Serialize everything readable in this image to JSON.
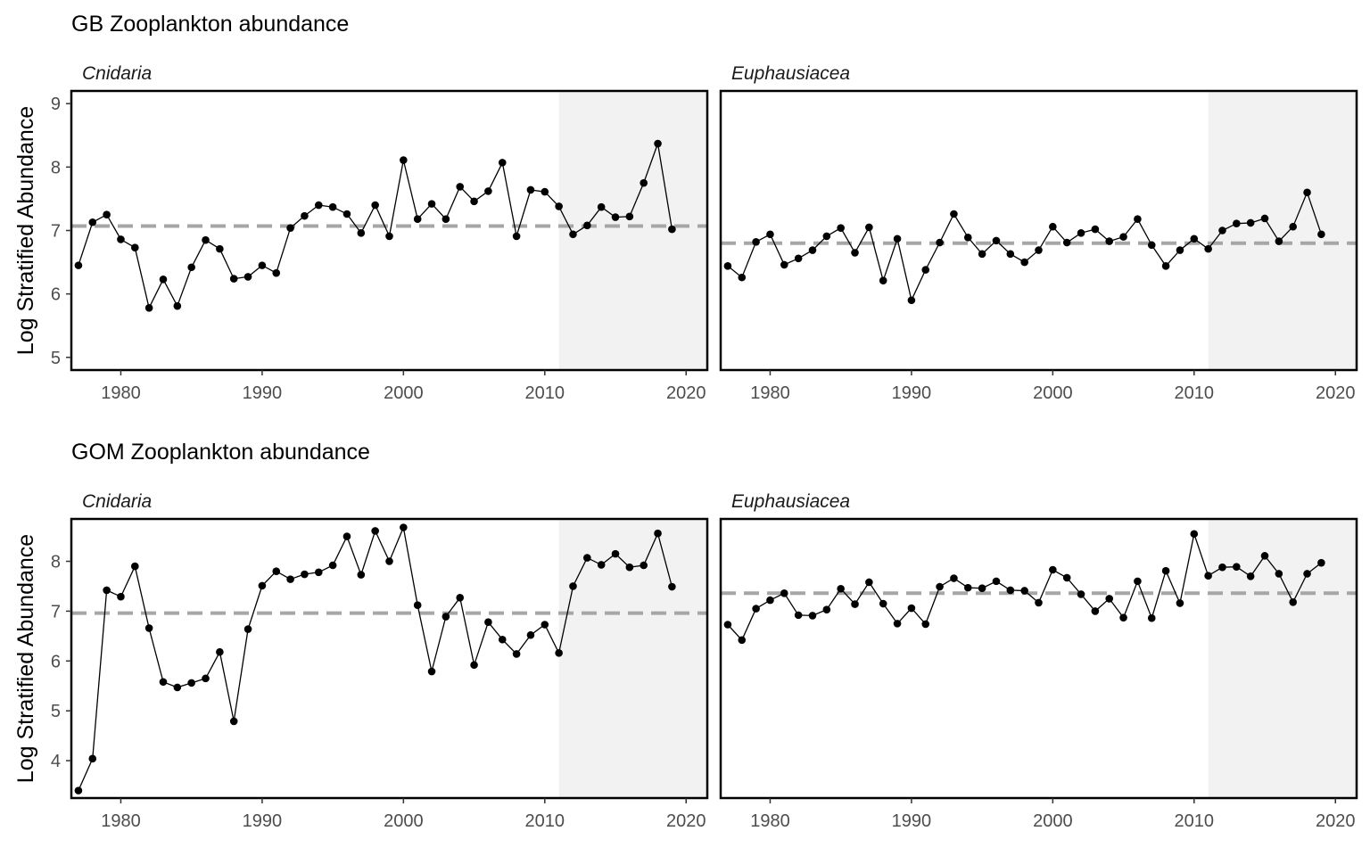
{
  "chart_data": [
    {
      "type": "line",
      "row_title": "GB Zooplankton abundance",
      "title": "Cnidaria",
      "ylabel": "Log Stratified Abundance",
      "xlim": [
        1976.5,
        2021.5
      ],
      "ylim": [
        4.8,
        9.2
      ],
      "xticks": [
        1980,
        1990,
        2000,
        2010,
        2020
      ],
      "yticks": [
        5,
        6,
        7,
        8,
        9
      ],
      "shaded_from": 2011,
      "mean_line": 7.07,
      "x": [
        1977,
        1978,
        1979,
        1980,
        1981,
        1982,
        1983,
        1984,
        1985,
        1986,
        1987,
        1988,
        1989,
        1990,
        1991,
        1992,
        1993,
        1994,
        1995,
        1996,
        1997,
        1998,
        1999,
        2000,
        2001,
        2002,
        2003,
        2004,
        2005,
        2006,
        2007,
        2008,
        2009,
        2010,
        2011,
        2012,
        2013,
        2014,
        2015,
        2016,
        2017,
        2018,
        2019
      ],
      "y": [
        6.45,
        7.13,
        7.25,
        6.86,
        6.73,
        5.78,
        6.23,
        5.81,
        6.42,
        6.85,
        6.71,
        6.24,
        6.27,
        6.45,
        6.33,
        7.04,
        7.23,
        7.4,
        7.37,
        7.26,
        6.96,
        7.4,
        6.91,
        8.11,
        7.18,
        7.42,
        7.18,
        7.69,
        7.46,
        7.62,
        8.07,
        6.91,
        7.64,
        7.61,
        7.38,
        6.94,
        7.08,
        7.37,
        7.21,
        7.22,
        7.75,
        8.37,
        7.02
      ]
    },
    {
      "type": "line",
      "row_title": "GB Zooplankton abundance",
      "title": "Euphausiacea",
      "ylabel": "",
      "xlim": [
        1976.5,
        2021.5
      ],
      "ylim": [
        4.8,
        9.2
      ],
      "xticks": [
        1980,
        1990,
        2000,
        2010,
        2020
      ],
      "yticks": [],
      "shaded_from": 2011,
      "mean_line": 6.8,
      "x": [
        1977,
        1978,
        1979,
        1980,
        1981,
        1982,
        1983,
        1984,
        1985,
        1986,
        1987,
        1988,
        1989,
        1990,
        1991,
        1992,
        1993,
        1994,
        1995,
        1996,
        1997,
        1998,
        1999,
        2000,
        2001,
        2002,
        2003,
        2004,
        2005,
        2006,
        2007,
        2008,
        2009,
        2010,
        2011,
        2012,
        2013,
        2014,
        2015,
        2016,
        2017,
        2018,
        2019
      ],
      "y": [
        6.44,
        6.26,
        6.82,
        6.94,
        6.46,
        6.56,
        6.69,
        6.91,
        7.04,
        6.65,
        7.05,
        6.21,
        6.87,
        5.9,
        6.38,
        6.81,
        7.26,
        6.89,
        6.63,
        6.84,
        6.63,
        6.5,
        6.69,
        7.06,
        6.81,
        6.96,
        7.02,
        6.83,
        6.9,
        7.18,
        6.77,
        6.44,
        6.69,
        6.87,
        6.71,
        7.0,
        7.11,
        7.12,
        7.19,
        6.83,
        7.06,
        7.6,
        6.94
      ]
    },
    {
      "type": "line",
      "row_title": "GOM Zooplankton abundance",
      "title": "Cnidaria",
      "ylabel": "Log Stratified Abundance",
      "xlim": [
        1976.5,
        2021.5
      ],
      "ylim": [
        3.25,
        8.85
      ],
      "xticks": [
        1980,
        1990,
        2000,
        2010,
        2020
      ],
      "yticks": [
        4,
        5,
        6,
        7,
        8
      ],
      "shaded_from": 2011,
      "mean_line": 6.96,
      "x": [
        1977,
        1978,
        1979,
        1980,
        1981,
        1982,
        1983,
        1984,
        1985,
        1986,
        1987,
        1988,
        1989,
        1990,
        1991,
        1992,
        1993,
        1994,
        1995,
        1996,
        1997,
        1998,
        1999,
        2000,
        2001,
        2002,
        2003,
        2004,
        2005,
        2006,
        2007,
        2008,
        2009,
        2010,
        2011,
        2012,
        2013,
        2014,
        2015,
        2016,
        2017,
        2018,
        2019
      ],
      "y": [
        3.4,
        4.04,
        7.42,
        7.29,
        7.9,
        6.66,
        5.58,
        5.47,
        5.56,
        5.65,
        6.18,
        4.79,
        6.64,
        7.51,
        7.8,
        7.64,
        7.74,
        7.78,
        7.92,
        8.5,
        7.73,
        8.61,
        8.0,
        8.68,
        7.12,
        5.79,
        6.89,
        7.27,
        5.92,
        6.78,
        6.43,
        6.14,
        6.52,
        6.73,
        6.16,
        7.5,
        8.07,
        7.93,
        8.15,
        7.88,
        7.92,
        8.56,
        7.49
      ]
    },
    {
      "type": "line",
      "row_title": "GOM Zooplankton abundance",
      "title": "Euphausiacea",
      "ylabel": "",
      "xlim": [
        1976.5,
        2021.5
      ],
      "ylim": [
        3.25,
        8.85
      ],
      "xticks": [
        1980,
        1990,
        2000,
        2010,
        2020
      ],
      "yticks": [],
      "shaded_from": 2011,
      "mean_line": 7.36,
      "x": [
        1977,
        1978,
        1979,
        1980,
        1981,
        1982,
        1983,
        1984,
        1985,
        1986,
        1987,
        1988,
        1989,
        1990,
        1991,
        1992,
        1993,
        1994,
        1995,
        1996,
        1997,
        1998,
        1999,
        2000,
        2001,
        2002,
        2003,
        2004,
        2005,
        2006,
        2007,
        2008,
        2009,
        2010,
        2011,
        2012,
        2013,
        2014,
        2015,
        2016,
        2017,
        2018,
        2019
      ],
      "y": [
        6.73,
        6.42,
        7.05,
        7.22,
        7.36,
        6.92,
        6.91,
        7.03,
        7.45,
        7.14,
        7.58,
        7.15,
        6.75,
        7.06,
        6.74,
        7.49,
        7.66,
        7.47,
        7.46,
        7.6,
        7.42,
        7.41,
        7.17,
        7.83,
        7.67,
        7.34,
        7.0,
        7.25,
        6.87,
        7.6,
        6.86,
        7.81,
        7.16,
        8.55,
        7.71,
        7.88,
        7.89,
        7.7,
        8.11,
        7.75,
        7.18,
        7.75,
        7.97
      ]
    }
  ],
  "colors": {
    "shade": "#f2f2f2",
    "mean_line": "#a6a6a6",
    "series": "#000000",
    "tick_text": "#4d4d4d"
  }
}
